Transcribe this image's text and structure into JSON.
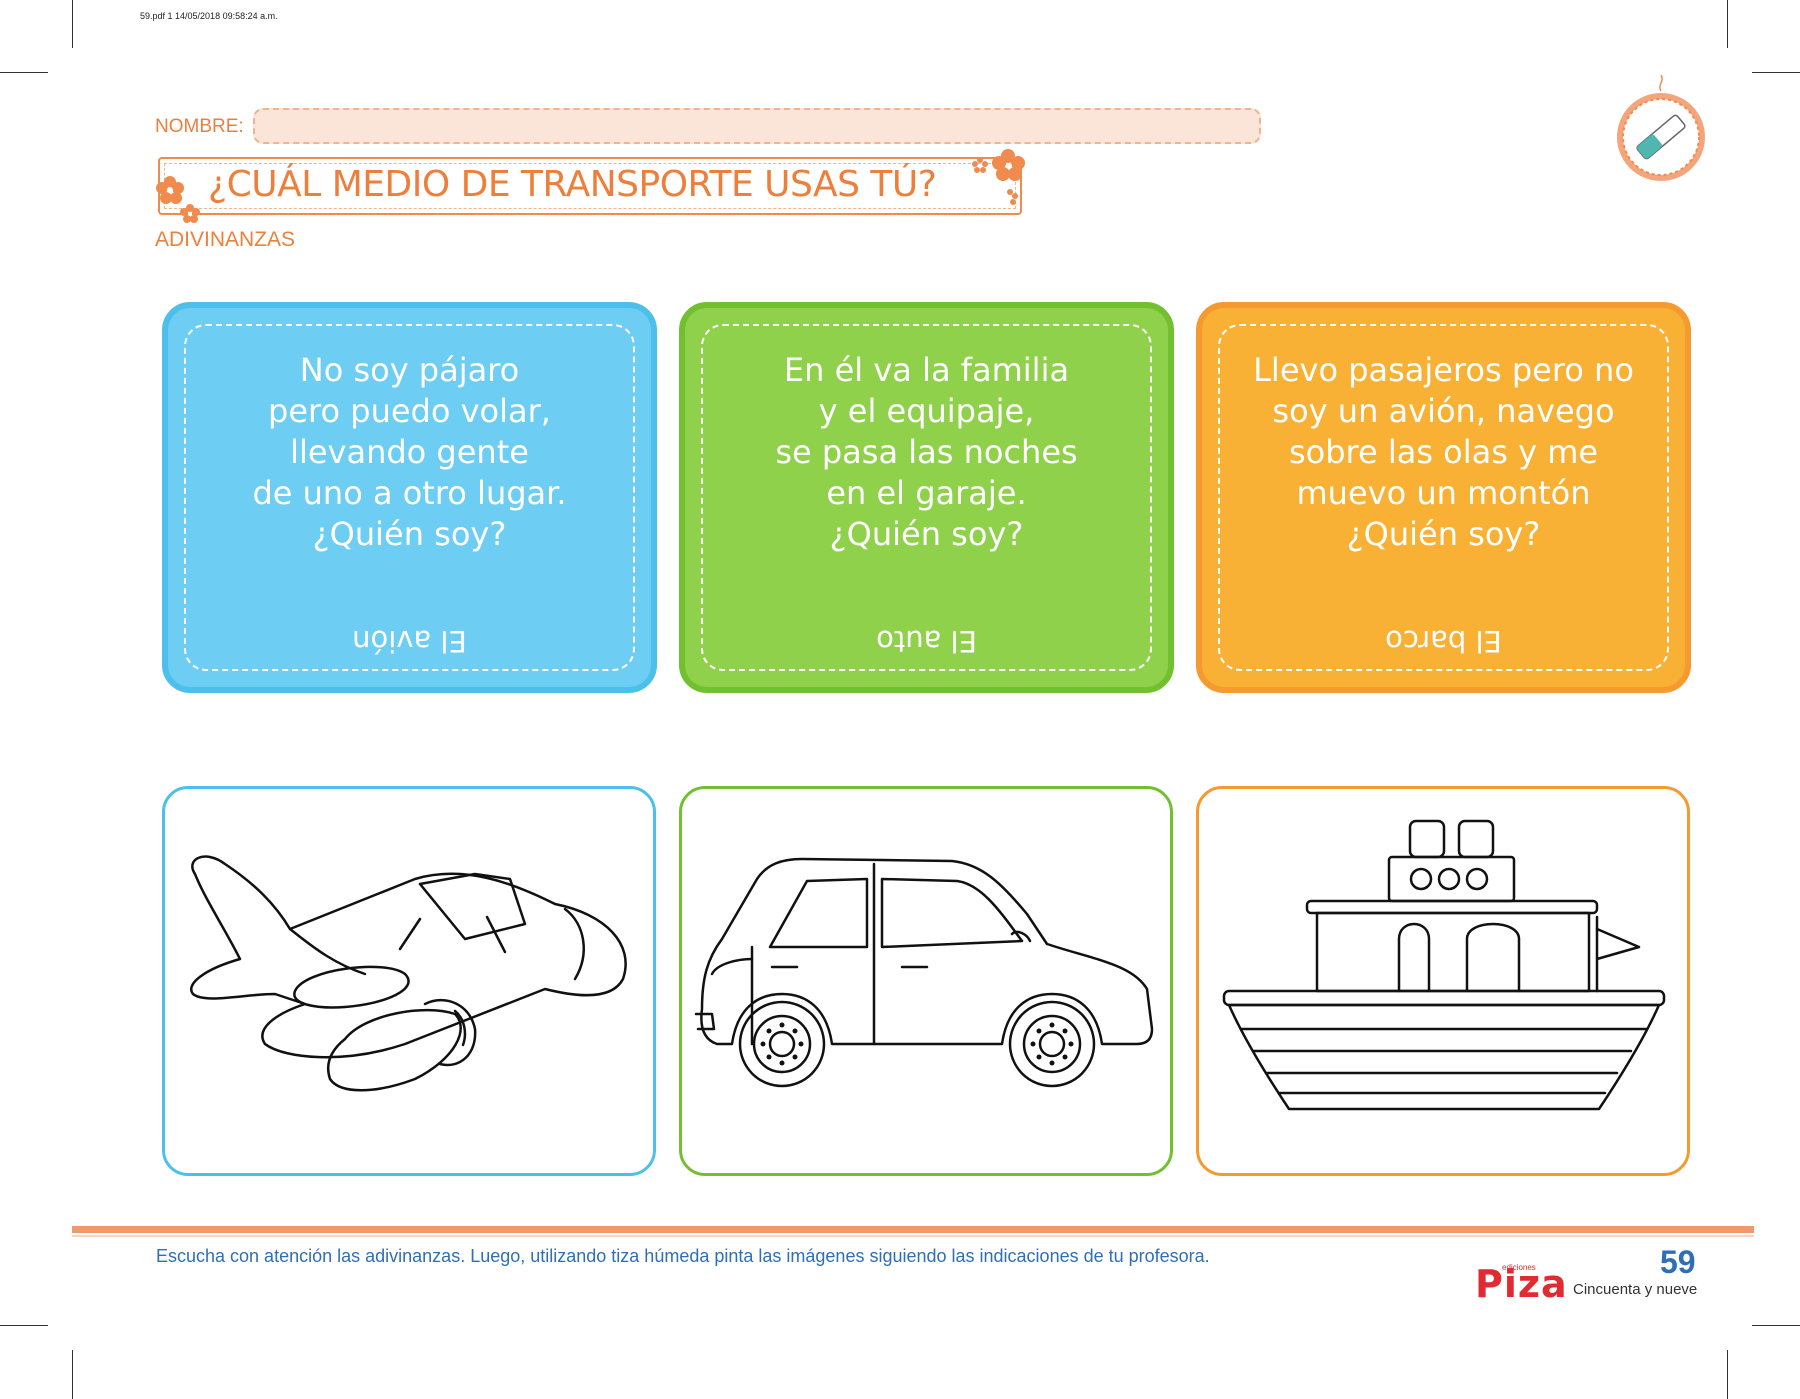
{
  "print_meta": "59.pdf   1   14/05/2018   09:58:24 a.m.",
  "header": {
    "name_label": "NOMBRE:",
    "title": "¿CUÁL MEDIO DE TRANSPORTE USAS TÚ?",
    "section": "ADIVINANZAS",
    "badge_icon": "chalk-icon"
  },
  "riddles": [
    {
      "lines": [
        "No soy pájaro",
        "pero puedo volar,",
        "llevando gente",
        "de uno a otro lugar.",
        "¿Quién soy?"
      ],
      "answer": "El avión",
      "color": "#6dcdf3"
    },
    {
      "lines": [
        "En él va la familia",
        "y el equipaje,",
        "se pasa las noches",
        "en el garaje.",
        "¿Quién soy?"
      ],
      "answer": "El auto",
      "color": "#8fd14a"
    },
    {
      "lines": [
        "Llevo pasajeros pero no",
        "soy un avión, navego",
        "sobre las olas y me",
        "muevo un montón",
        "¿Quién soy?"
      ],
      "answer": "El barco",
      "color": "#f8b135"
    }
  ],
  "pictures": [
    "airplane-drawing",
    "car-drawing",
    "boat-drawing"
  ],
  "footer": {
    "instructions": "Escucha con atención las adivinanzas. Luego, utilizando tiza húmeda pinta las imágenes siguiendo las indicaciones de tu profesora.",
    "logo": "Piza",
    "logo_small": "ediciones",
    "page_number": "59",
    "page_words": "Cincuenta y nueve"
  }
}
